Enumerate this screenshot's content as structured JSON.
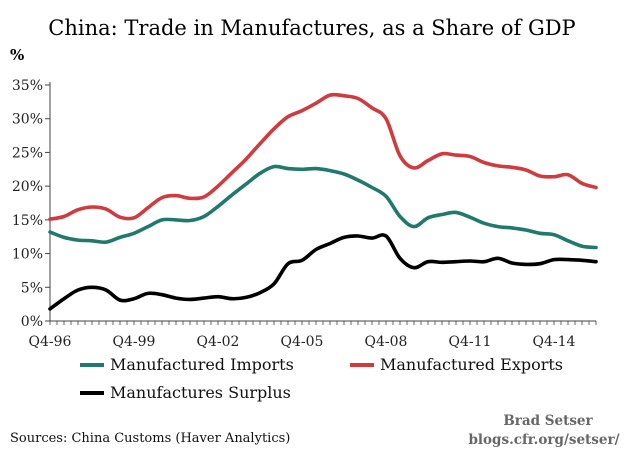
{
  "chart_data": {
    "type": "line",
    "title": "China: Trade in Manufactures, as a Share of GDP",
    "ylabel": "%",
    "xlabel": "",
    "ylim": [
      0,
      35
    ],
    "xlim": [
      1996.75,
      2016.25
    ],
    "grid": false,
    "legend_placement": "bottom",
    "y_ticks": [
      0,
      5,
      10,
      15,
      20,
      25,
      30,
      35
    ],
    "y_tick_labels": [
      "0%",
      "5%",
      "10%",
      "15%",
      "20%",
      "25%",
      "30%",
      "35%"
    ],
    "x_ticks": [
      1996.75,
      1999.75,
      2002.75,
      2005.75,
      2008.75,
      2011.75,
      2014.75
    ],
    "x_tick_labels": [
      "Q4-96",
      "Q4-99",
      "Q4-02",
      "Q4-05",
      "Q4-08",
      "Q4-11",
      "Q4-14"
    ],
    "series": [
      {
        "name": "Manufactured Imports",
        "color": "#1f7a6b",
        "points": [
          [
            1996.75,
            13.2
          ],
          [
            1997.25,
            12.4
          ],
          [
            1997.75,
            12.0
          ],
          [
            1998.25,
            11.9
          ],
          [
            1998.75,
            11.7
          ],
          [
            1999.25,
            12.4
          ],
          [
            1999.75,
            13.0
          ],
          [
            2000.25,
            14.0
          ],
          [
            2000.75,
            15.0
          ],
          [
            2001.25,
            15.0
          ],
          [
            2001.75,
            14.9
          ],
          [
            2002.25,
            15.5
          ],
          [
            2002.75,
            17.0
          ],
          [
            2003.25,
            18.7
          ],
          [
            2003.75,
            20.3
          ],
          [
            2004.25,
            21.9
          ],
          [
            2004.75,
            22.9
          ],
          [
            2005.25,
            22.6
          ],
          [
            2005.75,
            22.5
          ],
          [
            2006.25,
            22.6
          ],
          [
            2006.75,
            22.3
          ],
          [
            2007.25,
            21.8
          ],
          [
            2007.75,
            20.9
          ],
          [
            2008.25,
            19.8
          ],
          [
            2008.75,
            18.5
          ],
          [
            2009.25,
            15.5
          ],
          [
            2009.75,
            14.0
          ],
          [
            2010.25,
            15.3
          ],
          [
            2010.75,
            15.8
          ],
          [
            2011.25,
            16.1
          ],
          [
            2011.75,
            15.4
          ],
          [
            2012.25,
            14.5
          ],
          [
            2012.75,
            14.0
          ],
          [
            2013.25,
            13.8
          ],
          [
            2013.75,
            13.5
          ],
          [
            2014.25,
            13.0
          ],
          [
            2014.75,
            12.8
          ],
          [
            2015.25,
            11.9
          ],
          [
            2015.75,
            11.1
          ],
          [
            2016.25,
            10.9
          ]
        ]
      },
      {
        "name": "Manufactured Exports",
        "color": "#d13b3e",
        "points": [
          [
            1996.75,
            15.1
          ],
          [
            1997.25,
            15.5
          ],
          [
            1997.75,
            16.5
          ],
          [
            1998.25,
            16.9
          ],
          [
            1998.75,
            16.6
          ],
          [
            1999.25,
            15.4
          ],
          [
            1999.75,
            15.3
          ],
          [
            2000.25,
            16.8
          ],
          [
            2000.75,
            18.3
          ],
          [
            2001.25,
            18.6
          ],
          [
            2001.75,
            18.2
          ],
          [
            2002.25,
            18.4
          ],
          [
            2002.75,
            20.0
          ],
          [
            2003.25,
            22.0
          ],
          [
            2003.75,
            24.0
          ],
          [
            2004.25,
            26.3
          ],
          [
            2004.75,
            28.5
          ],
          [
            2005.25,
            30.3
          ],
          [
            2005.75,
            31.2
          ],
          [
            2006.25,
            32.3
          ],
          [
            2006.75,
            33.5
          ],
          [
            2007.25,
            33.4
          ],
          [
            2007.75,
            33.0
          ],
          [
            2008.25,
            31.6
          ],
          [
            2008.75,
            30.0
          ],
          [
            2009.25,
            24.5
          ],
          [
            2009.75,
            22.7
          ],
          [
            2010.25,
            23.8
          ],
          [
            2010.75,
            24.8
          ],
          [
            2011.25,
            24.6
          ],
          [
            2011.75,
            24.4
          ],
          [
            2012.25,
            23.5
          ],
          [
            2012.75,
            23.0
          ],
          [
            2013.25,
            22.8
          ],
          [
            2013.75,
            22.4
          ],
          [
            2014.25,
            21.5
          ],
          [
            2014.75,
            21.4
          ],
          [
            2015.25,
            21.7
          ],
          [
            2015.75,
            20.4
          ],
          [
            2016.25,
            19.8
          ]
        ]
      },
      {
        "name": "Manufactures Surplus",
        "color": "#000000",
        "points": [
          [
            1996.75,
            1.8
          ],
          [
            1997.25,
            3.3
          ],
          [
            1997.75,
            4.6
          ],
          [
            1998.25,
            5.0
          ],
          [
            1998.75,
            4.6
          ],
          [
            1999.25,
            3.1
          ],
          [
            1999.75,
            3.3
          ],
          [
            2000.25,
            4.1
          ],
          [
            2000.75,
            3.9
          ],
          [
            2001.25,
            3.4
          ],
          [
            2001.75,
            3.2
          ],
          [
            2002.25,
            3.4
          ],
          [
            2002.75,
            3.6
          ],
          [
            2003.25,
            3.3
          ],
          [
            2003.75,
            3.5
          ],
          [
            2004.25,
            4.2
          ],
          [
            2004.75,
            5.5
          ],
          [
            2005.25,
            8.5
          ],
          [
            2005.75,
            9.0
          ],
          [
            2006.25,
            10.6
          ],
          [
            2006.75,
            11.5
          ],
          [
            2007.25,
            12.4
          ],
          [
            2007.75,
            12.6
          ],
          [
            2008.25,
            12.3
          ],
          [
            2008.75,
            12.6
          ],
          [
            2009.25,
            9.3
          ],
          [
            2009.75,
            7.9
          ],
          [
            2010.25,
            8.8
          ],
          [
            2010.75,
            8.7
          ],
          [
            2011.25,
            8.8
          ],
          [
            2011.75,
            8.9
          ],
          [
            2012.25,
            8.8
          ],
          [
            2012.75,
            9.3
          ],
          [
            2013.25,
            8.6
          ],
          [
            2013.75,
            8.4
          ],
          [
            2014.25,
            8.5
          ],
          [
            2014.75,
            9.1
          ],
          [
            2015.25,
            9.1
          ],
          [
            2015.75,
            9.0
          ],
          [
            2016.25,
            8.8
          ]
        ]
      }
    ]
  },
  "footer": {
    "source": "Sources: China Customs (Haver Analytics)",
    "author": "Brad Setser",
    "blog": "blogs.cfr.org/setser/"
  }
}
